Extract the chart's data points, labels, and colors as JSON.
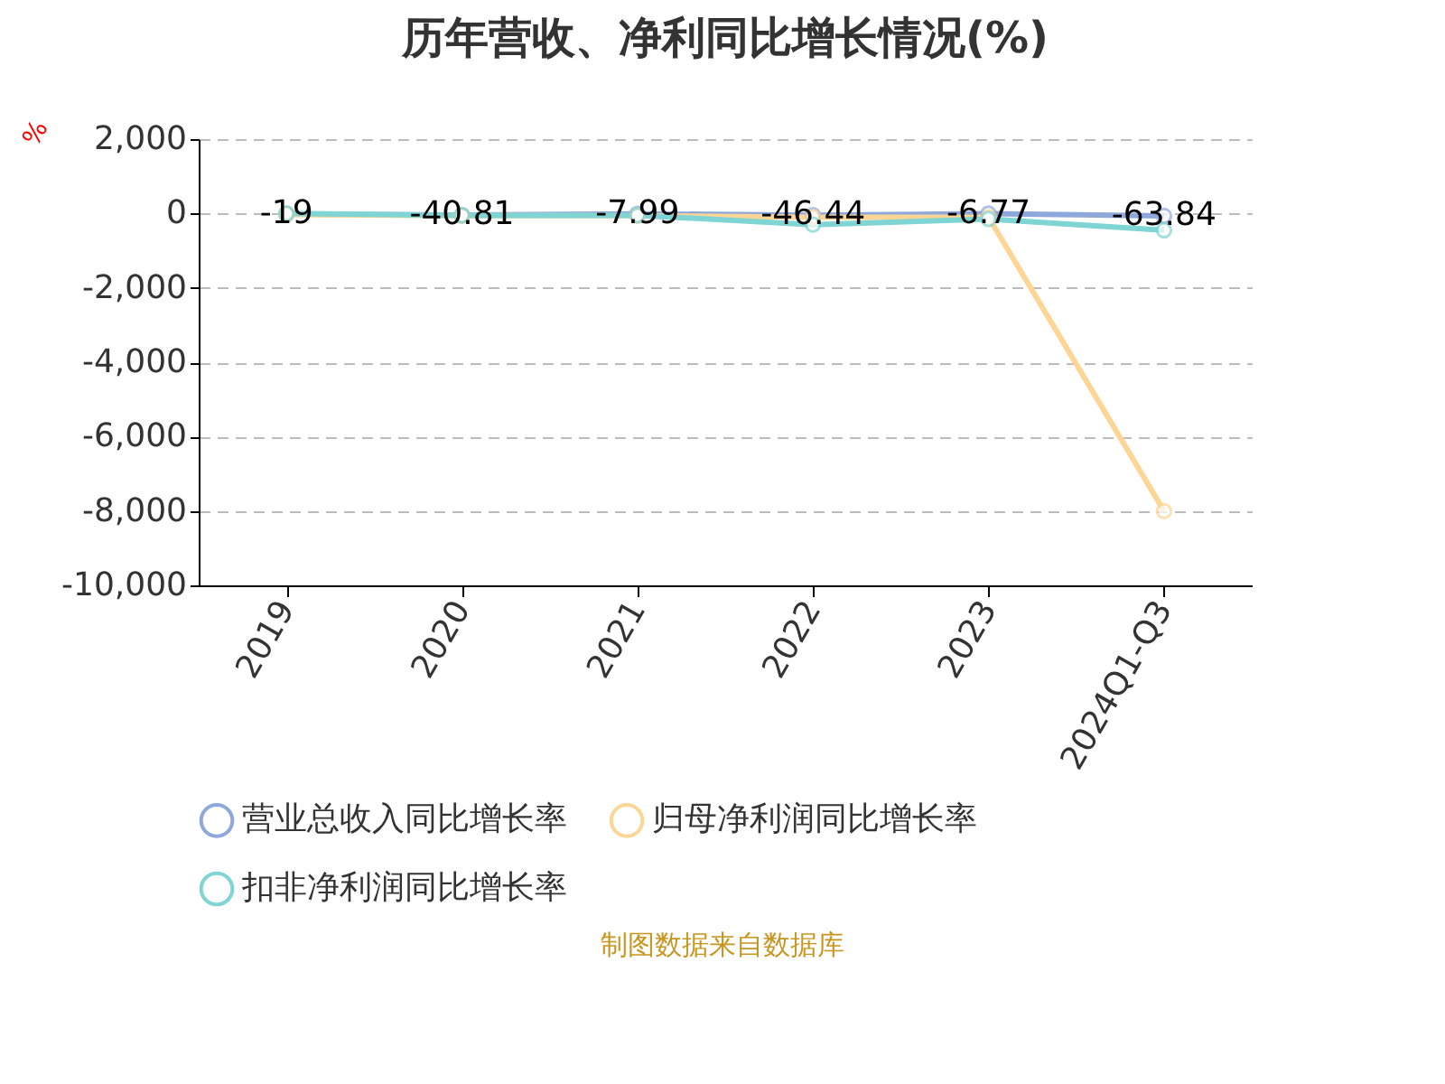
{
  "chart_data": {
    "type": "line",
    "title": "历年营收、净利同比增长情况(%)",
    "ylabel": "%",
    "categories": [
      "2019",
      "2020",
      "2021",
      "2022",
      "2023",
      "2024Q1-Q3"
    ],
    "series": [
      {
        "name": "营业总收入同比增长率",
        "color": "#8fa8dc",
        "values": [
          -19,
          -40.81,
          -7.99,
          -46.44,
          -6.77,
          -63.84
        ],
        "value_labels": [
          "-19",
          "-40.81",
          "-7.99",
          "-46.44",
          "-6.77",
          "-63.84"
        ]
      },
      {
        "name": "归母净利润同比增长率",
        "color": "#fdd595",
        "values": [
          -30,
          -60,
          -60,
          -100,
          -100,
          -8000
        ]
      },
      {
        "name": "扣非净利润同比增长率",
        "color": "#7fd4d4",
        "values": [
          0,
          -50,
          -50,
          -300,
          -150,
          -450
        ]
      }
    ],
    "ylim": [
      -10000,
      2000
    ],
    "yticks": [
      {
        "value": -10000,
        "label": "-10,000"
      },
      {
        "value": -8000,
        "label": "-8,000"
      },
      {
        "value": -6000,
        "label": "-6,000"
      },
      {
        "value": -4000,
        "label": "-4,000"
      },
      {
        "value": -2000,
        "label": "-2,000"
      },
      0,
      {
        "value": 2000,
        "label": "2,000"
      }
    ],
    "grid": "y",
    "legend": "bottom",
    "marker": "circle",
    "line_style": "solid",
    "annotations": [
      "制图数据来自数据库"
    ]
  }
}
